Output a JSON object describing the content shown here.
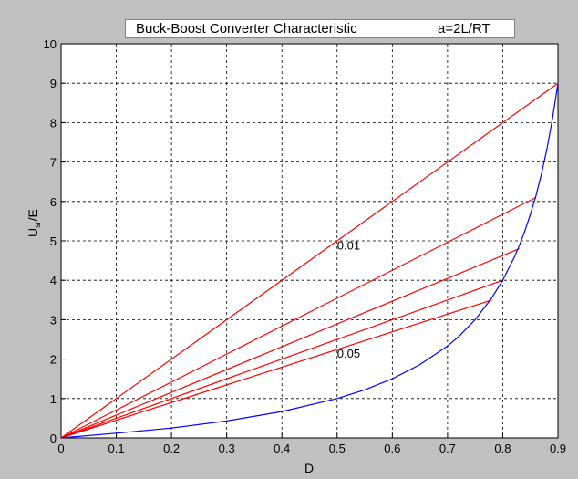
{
  "chart_data": {
    "type": "line",
    "title": "Buck-Boost Converter Characteristic",
    "title_param": "a=2L/RT",
    "xlabel": "D",
    "ylabel_main": "U",
    "ylabel_sub": "sr",
    "ylabel_tail": "/E",
    "xlim": [
      0,
      0.9
    ],
    "ylim": [
      0,
      10
    ],
    "xticks": [
      0,
      0.1,
      0.2,
      0.3,
      0.4,
      0.5,
      0.6,
      0.7,
      0.8,
      0.9
    ],
    "xtick_labels": [
      "0",
      "0.1",
      "0.2",
      "0.3",
      "0.4",
      "0.5",
      "0.6",
      "0.7",
      "0.8",
      "0.9"
    ],
    "yticks": [
      0,
      1,
      2,
      3,
      4,
      5,
      6,
      7,
      8,
      9,
      10
    ],
    "ytick_labels": [
      "0",
      "1",
      "2",
      "3",
      "4",
      "5",
      "6",
      "7",
      "8",
      "9",
      "10"
    ],
    "grid": true,
    "series": [
      {
        "color": "#ff0000",
        "x": [
          0,
          0.9
        ],
        "y": [
          0,
          9.0
        ]
      },
      {
        "color": "#ff0000",
        "x": [
          0,
          0.86
        ],
        "y": [
          0,
          6.1
        ]
      },
      {
        "color": "#ff0000",
        "x": [
          0,
          0.83
        ],
        "y": [
          0,
          4.8
        ]
      },
      {
        "color": "#ff0000",
        "x": [
          0,
          0.8
        ],
        "y": [
          0,
          4.0
        ]
      },
      {
        "color": "#ff0000",
        "x": [
          0,
          0.78
        ],
        "y": [
          0,
          3.5
        ]
      },
      {
        "color": "#0000ff",
        "x": [
          0,
          0.1,
          0.2,
          0.3,
          0.4,
          0.5,
          0.55,
          0.6,
          0.65,
          0.7,
          0.72,
          0.75,
          0.78,
          0.8,
          0.82,
          0.83,
          0.84,
          0.85,
          0.86,
          0.87,
          0.88,
          0.89,
          0.9
        ],
        "y": [
          0,
          0.12,
          0.25,
          0.43,
          0.67,
          1.0,
          1.22,
          1.5,
          1.86,
          2.33,
          2.57,
          3.0,
          3.55,
          4.0,
          4.56,
          4.88,
          5.25,
          5.67,
          6.14,
          6.69,
          7.33,
          8.09,
          9.0
        ]
      }
    ],
    "annotations": [
      {
        "text": "0.01",
        "x": 0.5,
        "y": 4.9
      },
      {
        "text": "0.05",
        "x": 0.5,
        "y": 2.15
      }
    ],
    "colors": {
      "figure_bg": "#c0c0c0",
      "axes_bg": "#ffffff",
      "grid": "#000000"
    }
  }
}
